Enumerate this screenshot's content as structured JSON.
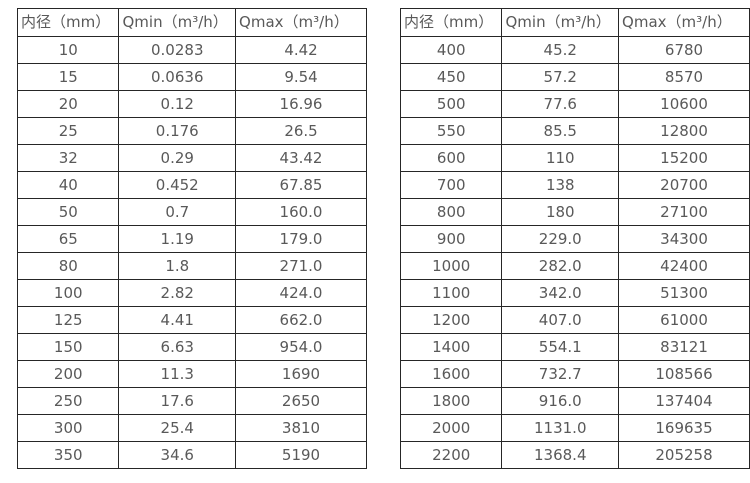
{
  "colors": {
    "background": "#ffffff",
    "table_border": "#262626",
    "text": "#595959"
  },
  "chart_data": [
    {
      "type": "table",
      "title": "",
      "columns": [
        "内径（mm）",
        "Qmin（m³/h）",
        "Qmax（m³/h）"
      ],
      "rows": [
        [
          "10",
          "0.0283",
          "4.42"
        ],
        [
          "15",
          "0.0636",
          "9.54"
        ],
        [
          "20",
          "0.12",
          "16.96"
        ],
        [
          "25",
          "0.176",
          "26.5"
        ],
        [
          "32",
          "0.29",
          "43.42"
        ],
        [
          "40",
          "0.452",
          "67.85"
        ],
        [
          "50",
          "0.7",
          "160.0"
        ],
        [
          "65",
          "1.19",
          "179.0"
        ],
        [
          "80",
          "1.8",
          "271.0"
        ],
        [
          "100",
          "2.82",
          "424.0"
        ],
        [
          "125",
          "4.41",
          "662.0"
        ],
        [
          "150",
          "6.63",
          "954.0"
        ],
        [
          "200",
          "11.3",
          "1690"
        ],
        [
          "250",
          "17.6",
          "2650"
        ],
        [
          "300",
          "25.4",
          "3810"
        ],
        [
          "350",
          "34.6",
          "5190"
        ]
      ]
    },
    {
      "type": "table",
      "title": "",
      "columns": [
        "内径（mm）",
        "Qmin（m³/h）",
        "Qmax（m³/h）"
      ],
      "rows": [
        [
          "400",
          "45.2",
          "6780"
        ],
        [
          "450",
          "57.2",
          "8570"
        ],
        [
          "500",
          "77.6",
          "10600"
        ],
        [
          "550",
          "85.5",
          "12800"
        ],
        [
          "600",
          "110",
          "15200"
        ],
        [
          "700",
          "138",
          "20700"
        ],
        [
          "800",
          "180",
          "27100"
        ],
        [
          "900",
          "229.0",
          "34300"
        ],
        [
          "1000",
          "282.0",
          "42400"
        ],
        [
          "1100",
          "342.0",
          "51300"
        ],
        [
          "1200",
          "407.0",
          "61000"
        ],
        [
          "1400",
          "554.1",
          "83121"
        ],
        [
          "1600",
          "732.7",
          "108566"
        ],
        [
          "1800",
          "916.0",
          "137404"
        ],
        [
          "2000",
          "1131.0",
          "169635"
        ],
        [
          "2200",
          "1368.4",
          "205258"
        ]
      ]
    }
  ]
}
